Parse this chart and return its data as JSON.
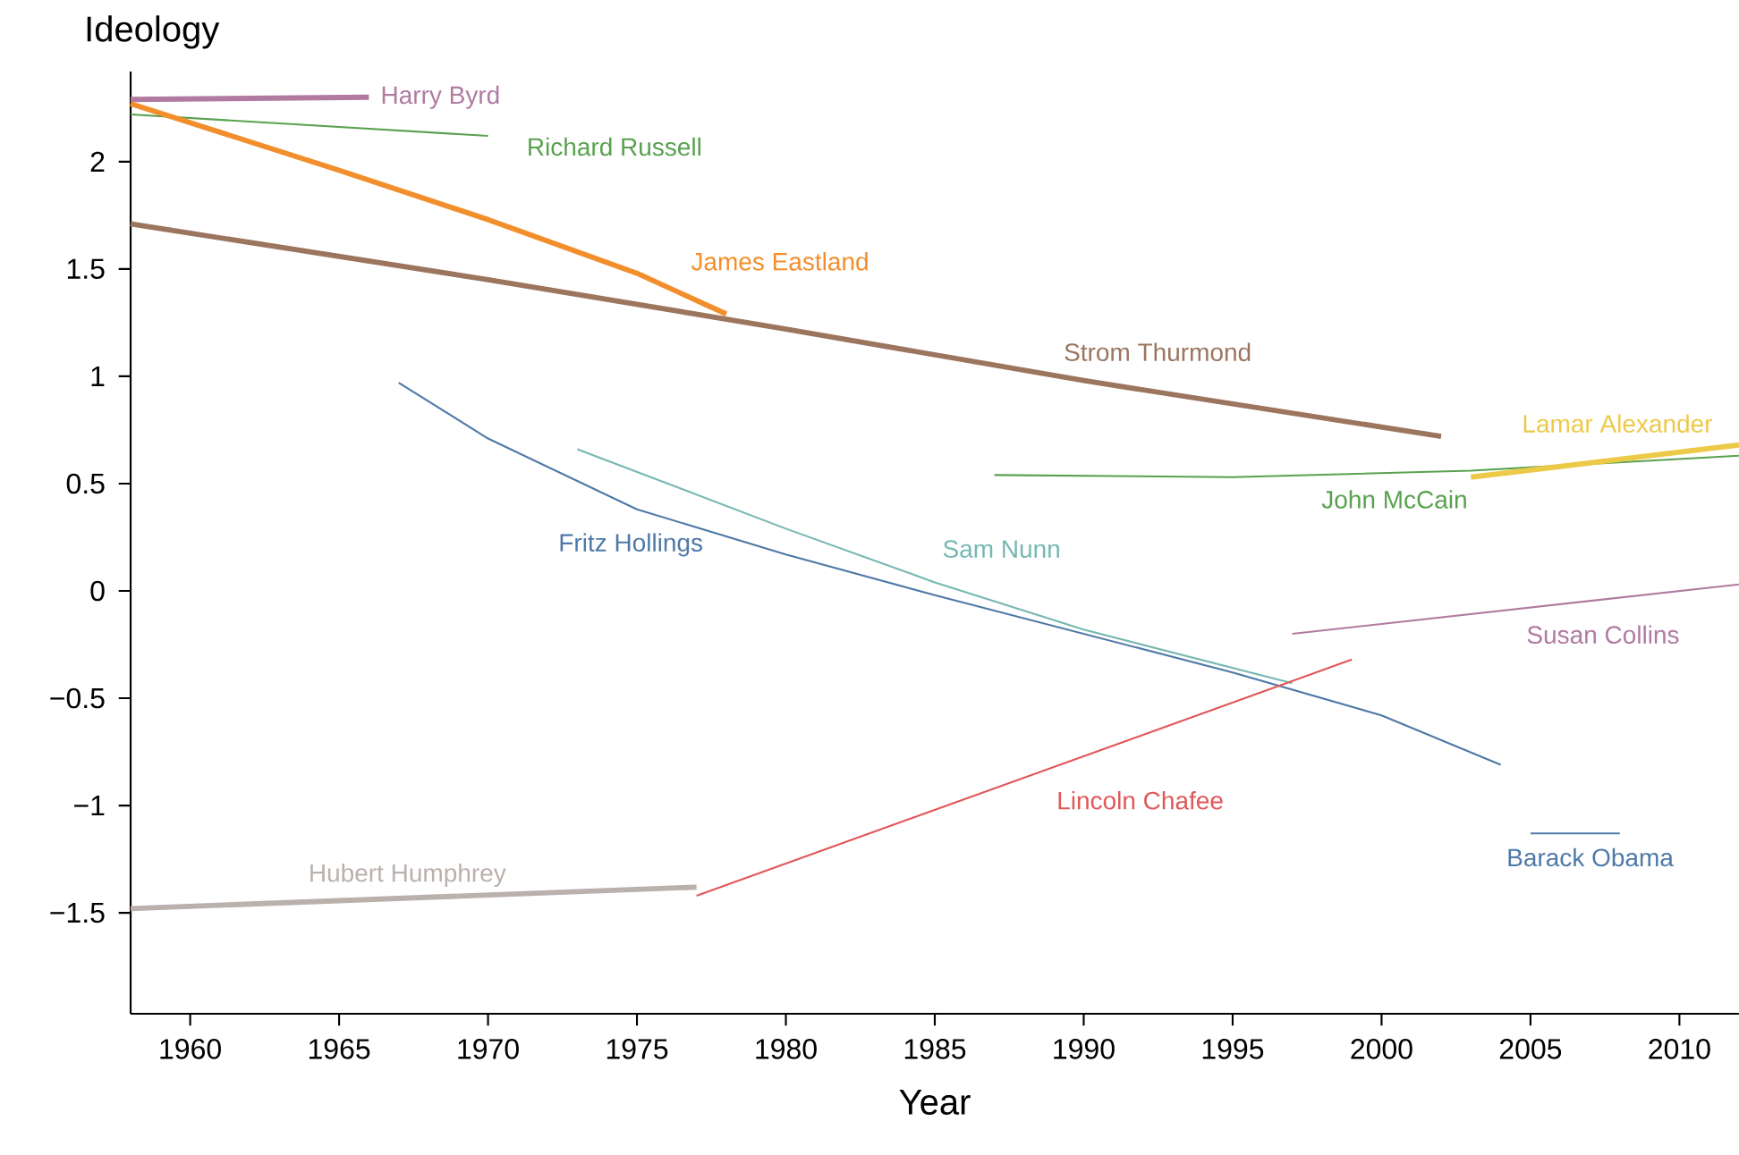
{
  "chart_data": {
    "type": "line",
    "ylabel": "Ideology",
    "xlabel": "Year",
    "xlim": [
      1958,
      2012
    ],
    "ylim": [
      -1.97,
      2.42
    ],
    "xticks": [
      1960,
      1965,
      1970,
      1975,
      1980,
      1985,
      1990,
      1995,
      2000,
      2005,
      2010
    ],
    "yticks": [
      {
        "value": -1.5,
        "label": "−1.5"
      },
      {
        "value": -1,
        "label": "−1"
      },
      {
        "value": -0.5,
        "label": "−0.5"
      },
      0,
      0.5,
      1,
      1.5,
      2
    ],
    "grid": false,
    "legend": false,
    "marker": "none",
    "line_style": "solid",
    "series": [
      {
        "name": "Harry Byrd",
        "color": "#b07aa1",
        "x": [
          1958,
          1966
        ],
        "values": [
          2.29,
          2.3
        ]
      },
      {
        "name": "Richard Russell",
        "color": "#59a14f",
        "x": [
          1958,
          1964,
          1970
        ],
        "values": [
          2.22,
          2.17,
          2.12
        ]
      },
      {
        "name": "James Eastland",
        "color": "#f28e2b",
        "x": [
          1958,
          1965,
          1970,
          1975,
          1978
        ],
        "values": [
          2.27,
          1.96,
          1.73,
          1.48,
          1.29
        ]
      },
      {
        "name": "Strom Thurmond",
        "color": "#9c755f",
        "x": [
          1958,
          1970,
          1980,
          1990,
          2002
        ],
        "values": [
          1.71,
          1.45,
          1.22,
          0.98,
          0.72
        ]
      },
      {
        "name": "Fritz Hollings",
        "color": "#4e79a7",
        "x": [
          1967,
          1970,
          1975,
          1980,
          1985,
          1990,
          1995,
          2000,
          2004
        ],
        "values": [
          0.97,
          0.71,
          0.38,
          0.17,
          -0.02,
          -0.2,
          -0.38,
          -0.58,
          -0.81
        ]
      },
      {
        "name": "Sam Nunn",
        "color": "#76b7b2",
        "x": [
          1973,
          1980,
          1985,
          1990,
          1997
        ],
        "values": [
          0.66,
          0.29,
          0.04,
          -0.18,
          -0.43
        ]
      },
      {
        "name": "John McCain",
        "color": "#59a14f",
        "x": [
          1987,
          1995,
          2003,
          2012
        ],
        "values": [
          0.54,
          0.53,
          0.56,
          0.63
        ]
      },
      {
        "name": "Lamar Alexander",
        "color": "#edc948",
        "x": [
          2003,
          2012
        ],
        "values": [
          0.53,
          0.68
        ]
      },
      {
        "name": "Susan Collins",
        "color": "#b07aa1",
        "x": [
          1997,
          2012
        ],
        "values": [
          -0.2,
          0.03
        ]
      },
      {
        "name": "Lincoln Chafee",
        "color": "#e15759",
        "x": [
          1977,
          1999
        ],
        "values": [
          -1.42,
          -0.32
        ]
      },
      {
        "name": "Hubert Humphrey",
        "color": "#bab0ac",
        "x": [
          1958,
          1977
        ],
        "values": [
          -1.48,
          -1.38
        ]
      },
      {
        "name": "Barack Obama",
        "color": "#4e79a7",
        "x": [
          2005,
          2008
        ],
        "values": [
          -1.13,
          -1.13
        ]
      }
    ]
  }
}
